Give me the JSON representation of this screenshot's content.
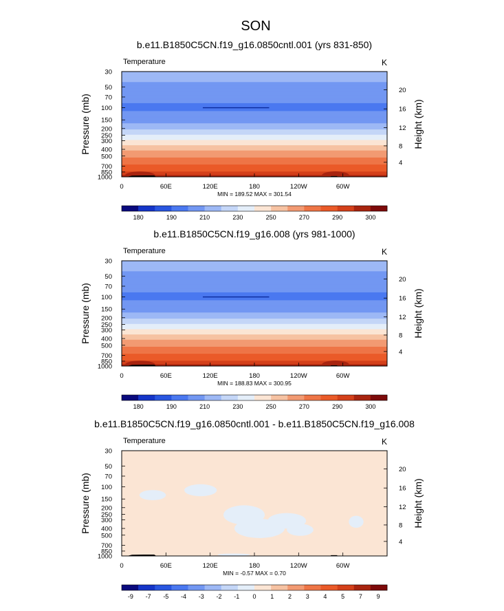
{
  "figure": {
    "season_title": "SON"
  },
  "chart_data": [
    {
      "type": "heatmap",
      "title": "b.e11.B1850C5CN.f19_g16.0850cntl.001 (yrs 831-850)",
      "subtitle": "Temperature",
      "units": "K",
      "ylabel": "Pressure (mb)",
      "ylabel_right": "Height (km)",
      "x_ticks": [
        "0",
        "60E",
        "120E",
        "180",
        "120W",
        "60W"
      ],
      "x_tick_values": [
        0,
        60,
        120,
        180,
        240,
        300
      ],
      "xlim": [
        0,
        360
      ],
      "y_ticks": [
        "30",
        "50",
        "70",
        "100",
        "150",
        "200",
        "250",
        "300",
        "400",
        "500",
        "700",
        "850",
        "1000"
      ],
      "y_tick_values": [
        30,
        50,
        70,
        100,
        150,
        200,
        250,
        300,
        400,
        500,
        700,
        850,
        1000
      ],
      "ylim": [
        1000,
        30
      ],
      "y_scale": "log",
      "right_ticks": [
        "4",
        "8",
        "12",
        "16",
        "20"
      ],
      "right_tick_pressures": [
        616,
        356,
        194,
        104,
        55
      ],
      "stats_text": "MIN = 189.52  MAX = 301.54",
      "colorbar_labels": [
        "180",
        "190",
        "210",
        "230",
        "250",
        "270",
        "290",
        "300"
      ],
      "colorbar_colors": [
        "#0a0a7d",
        "#1535c8",
        "#2956e0",
        "#4a78f0",
        "#7297f2",
        "#9db8f5",
        "#c4d6f7",
        "#e4eef9",
        "#fbe5d4",
        "#f6c2a2",
        "#f29a72",
        "#ee7546",
        "#ea5a28",
        "#d4401a",
        "#a8240f",
        "#7d0a0a"
      ],
      "profile": [
        {
          "p": 30,
          "value": 214
        },
        {
          "p": 50,
          "value": 208
        },
        {
          "p": 70,
          "value": 203
        },
        {
          "p": 100,
          "value": 198
        },
        {
          "p": 150,
          "value": 205
        },
        {
          "p": 200,
          "value": 218
        },
        {
          "p": 250,
          "value": 231
        },
        {
          "p": 300,
          "value": 242
        },
        {
          "p": 400,
          "value": 258
        },
        {
          "p": 500,
          "value": 268
        },
        {
          "p": 700,
          "value": 282
        },
        {
          "p": 850,
          "value": 291
        },
        {
          "p": 1000,
          "value": 298
        }
      ],
      "levels": [
        175,
        180,
        185,
        190,
        200,
        210,
        220,
        230,
        240,
        250,
        260,
        270,
        280,
        290,
        295,
        300
      ]
    },
    {
      "type": "heatmap",
      "title": "b.e11.B1850C5CN.f19_g16.008 (yrs 981-1000)",
      "subtitle": "Temperature",
      "units": "K",
      "ylabel": "Pressure (mb)",
      "ylabel_right": "Height (km)",
      "x_ticks": [
        "0",
        "60E",
        "120E",
        "180",
        "120W",
        "60W"
      ],
      "x_tick_values": [
        0,
        60,
        120,
        180,
        240,
        300
      ],
      "xlim": [
        0,
        360
      ],
      "y_ticks": [
        "30",
        "50",
        "70",
        "100",
        "150",
        "200",
        "250",
        "300",
        "400",
        "500",
        "700",
        "850",
        "1000"
      ],
      "y_tick_values": [
        30,
        50,
        70,
        100,
        150,
        200,
        250,
        300,
        400,
        500,
        700,
        850,
        1000
      ],
      "ylim": [
        1000,
        30
      ],
      "y_scale": "log",
      "right_ticks": [
        "4",
        "8",
        "12",
        "16",
        "20"
      ],
      "right_tick_pressures": [
        616,
        356,
        194,
        104,
        55
      ],
      "stats_text": "MIN = 188.83  MAX = 300.95",
      "colorbar_labels": [
        "180",
        "190",
        "210",
        "230",
        "250",
        "270",
        "290",
        "300"
      ],
      "colorbar_colors": [
        "#0a0a7d",
        "#1535c8",
        "#2956e0",
        "#4a78f0",
        "#7297f2",
        "#9db8f5",
        "#c4d6f7",
        "#e4eef9",
        "#fbe5d4",
        "#f6c2a2",
        "#f29a72",
        "#ee7546",
        "#ea5a28",
        "#d4401a",
        "#a8240f",
        "#7d0a0a"
      ],
      "profile": [
        {
          "p": 30,
          "value": 214
        },
        {
          "p": 50,
          "value": 208
        },
        {
          "p": 70,
          "value": 203
        },
        {
          "p": 100,
          "value": 198
        },
        {
          "p": 150,
          "value": 205
        },
        {
          "p": 200,
          "value": 218
        },
        {
          "p": 250,
          "value": 231
        },
        {
          "p": 300,
          "value": 242
        },
        {
          "p": 400,
          "value": 258
        },
        {
          "p": 500,
          "value": 268
        },
        {
          "p": 700,
          "value": 282
        },
        {
          "p": 850,
          "value": 291
        },
        {
          "p": 1000,
          "value": 298
        }
      ],
      "levels": [
        175,
        180,
        185,
        190,
        200,
        210,
        220,
        230,
        240,
        250,
        260,
        270,
        280,
        290,
        295,
        300
      ]
    },
    {
      "type": "heatmap",
      "title": "b.e11.B1850C5CN.f19_g16.0850cntl.001 - b.e11.B1850C5CN.f19_g16.008",
      "subtitle": "Temperature",
      "units": "K",
      "ylabel": "Pressure (mb)",
      "ylabel_right": "Height (km)",
      "x_ticks": [
        "0",
        "60E",
        "120E",
        "180",
        "120W",
        "60W"
      ],
      "x_tick_values": [
        0,
        60,
        120,
        180,
        240,
        300
      ],
      "xlim": [
        0,
        360
      ],
      "y_ticks": [
        "30",
        "50",
        "70",
        "100",
        "150",
        "200",
        "250",
        "300",
        "400",
        "500",
        "700",
        "850",
        "1000"
      ],
      "y_tick_values": [
        30,
        50,
        70,
        100,
        150,
        200,
        250,
        300,
        400,
        500,
        700,
        850,
        1000
      ],
      "ylim": [
        1000,
        30
      ],
      "y_scale": "log",
      "right_ticks": [
        "4",
        "8",
        "12",
        "16",
        "20"
      ],
      "right_tick_pressures": [
        616,
        356,
        194,
        104,
        55
      ],
      "stats_text": "MIN = -0.57  MAX =  0.70",
      "colorbar_labels": [
        "-9",
        "-7",
        "-5",
        "-4",
        "-3",
        "-2",
        "-1",
        "0",
        "1",
        "2",
        "3",
        "4",
        "5",
        "7",
        "9"
      ],
      "colorbar_colors": [
        "#0a0a7d",
        "#1535c8",
        "#2956e0",
        "#4a78f0",
        "#7297f2",
        "#9db8f5",
        "#c4d6f7",
        "#e4eef9",
        "#fbe5d4",
        "#f6c2a2",
        "#f29a72",
        "#ee7546",
        "#ea5a28",
        "#d4401a",
        "#a8240f",
        "#7d0a0a"
      ],
      "background_value": 0.3,
      "negative_regions": [
        {
          "lon": 42,
          "p": 132,
          "rlon": 18,
          "rp": 0.17
        },
        {
          "lon": 107,
          "p": 112,
          "rlon": 22,
          "rp": 0.2
        },
        {
          "lon": 166,
          "p": 255,
          "rlon": 28,
          "rp": 0.32
        },
        {
          "lon": 187,
          "p": 400,
          "rlon": 34,
          "rp": 0.32
        },
        {
          "lon": 224,
          "p": 310,
          "rlon": 26,
          "rp": 0.26
        },
        {
          "lon": 242,
          "p": 420,
          "rlon": 18,
          "rp": 0.2
        },
        {
          "lon": 318,
          "p": 320,
          "rlon": 10,
          "rp": 0.2
        },
        {
          "lon": 152,
          "p": 960,
          "rlon": 22,
          "rp": 0.04
        }
      ]
    }
  ]
}
